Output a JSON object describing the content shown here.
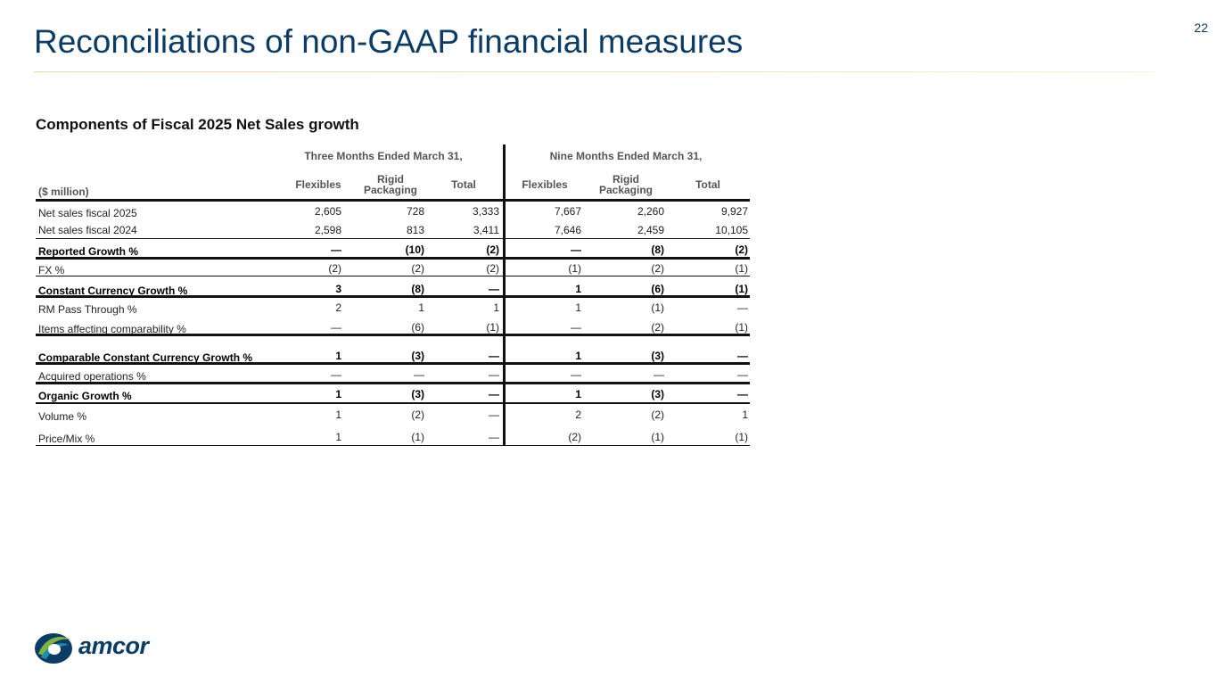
{
  "page": {
    "title": "Reconciliations of non-GAAP financial measures",
    "number": "22"
  },
  "section_title": "Components of Fiscal 2025 Net Sales growth",
  "table": {
    "group_headers": [
      "Three Months Ended March 31,",
      "Nine Months Ended March 31,"
    ],
    "unit_label": "($ million)",
    "columns": [
      {
        "line1": "",
        "line2": "Flexibles"
      },
      {
        "line1": "Rigid",
        "line2": "Packaging"
      },
      {
        "line1": "",
        "line2": "Total"
      },
      {
        "line1": "",
        "line2": "Flexibles"
      },
      {
        "line1": "Rigid",
        "line2": "Packaging"
      },
      {
        "line1": "",
        "line2": "Total"
      }
    ],
    "rows": [
      {
        "label": "Net sales fiscal 2025",
        "bold": false,
        "values": [
          "2,605",
          "728",
          "3,333",
          "7,667",
          "2,260",
          "9,927"
        ]
      },
      {
        "label": "Net sales fiscal 2024",
        "bold": false,
        "values": [
          "2,598",
          "813",
          "3,411",
          "7,646",
          "2,459",
          "10,105"
        ]
      },
      {
        "label": "Reported Growth %",
        "bold": true,
        "values": [
          "—",
          "(10)",
          "(2)",
          "—",
          "(8)",
          "(2)"
        ]
      },
      {
        "label": "FX %",
        "bold": false,
        "values": [
          "(2)",
          "(2)",
          "(2)",
          "(1)",
          "(2)",
          "(1)"
        ]
      },
      {
        "label": "Constant Currency Growth %",
        "bold": true,
        "values": [
          "3",
          "(8)",
          "—",
          "1",
          "(6)",
          "(1)"
        ]
      },
      {
        "label": "RM Pass Through %",
        "bold": false,
        "values": [
          "2",
          "1",
          "1",
          "1",
          "(1)",
          "—"
        ]
      },
      {
        "label": "Items affecting comparability %",
        "bold": false,
        "values": [
          "—",
          "(6)",
          "(1)",
          "—",
          "(2)",
          "(1)"
        ]
      },
      {
        "label": "Comparable Constant Currency Growth %",
        "bold": true,
        "values": [
          "1",
          "(3)",
          "—",
          "1",
          "(3)",
          "—"
        ]
      },
      {
        "label": "Acquired operations %",
        "bold": false,
        "values": [
          "—",
          "—",
          "—",
          "—",
          "—",
          "—"
        ]
      },
      {
        "label": "Organic Growth %",
        "bold": true,
        "values": [
          "1",
          "(3)",
          "—",
          "1",
          "(3)",
          "—"
        ]
      },
      {
        "label": "Volume %",
        "bold": false,
        "values": [
          "1",
          "(2)",
          "—",
          "2",
          "(2)",
          "1"
        ]
      },
      {
        "label": "Price/Mix %",
        "bold": false,
        "values": [
          "1",
          "(1)",
          "—",
          "(2)",
          "(1)",
          "(1)"
        ]
      }
    ]
  },
  "logo": {
    "text": "amcor",
    "icon": "amcor-swirl-icon",
    "colors": {
      "navy": "#0b3c66",
      "green": "#7fb241",
      "teal": "#1a8fb0"
    }
  }
}
